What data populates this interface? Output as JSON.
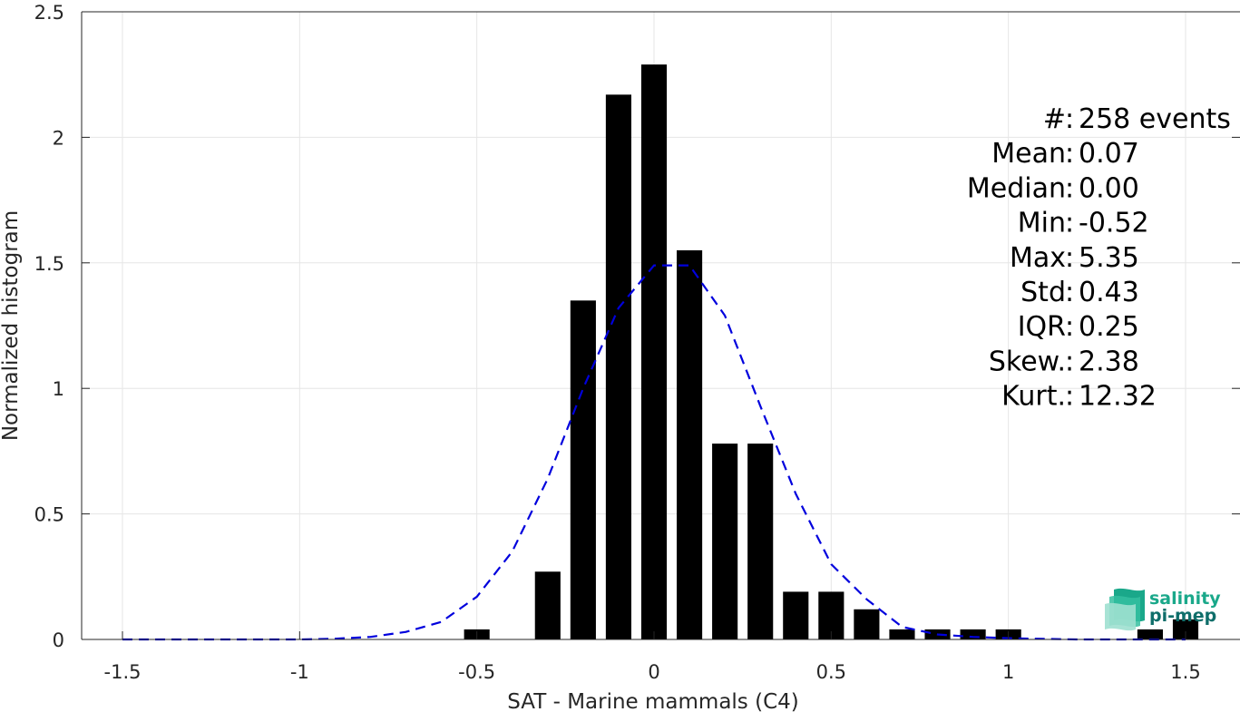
{
  "chart_data": {
    "type": "bar",
    "xlabel": "SAT - Marine mammals (C4)",
    "ylabel": "Normalized histogram",
    "xlim": [
      -1.5,
      1.5
    ],
    "ylim": [
      0,
      2.5
    ],
    "xticks": [
      -1.5,
      -1,
      -0.5,
      0,
      0.5,
      1,
      1.5
    ],
    "xtick_labels": [
      "-1.5",
      "-1",
      "-0.5",
      "0",
      "0.5",
      "1",
      "1.5"
    ],
    "yticks": [
      0,
      0.5,
      1,
      1.5,
      2,
      2.5
    ],
    "ytick_labels": [
      "0",
      "0.5",
      "1",
      "1.5",
      "2",
      "2.5"
    ],
    "grid": true,
    "bar_color": "#000000",
    "bars": [
      {
        "x": -0.5,
        "y": 0.04
      },
      {
        "x": -0.3,
        "y": 0.27
      },
      {
        "x": -0.2,
        "y": 1.35
      },
      {
        "x": -0.1,
        "y": 2.17
      },
      {
        "x": 0.0,
        "y": 2.29
      },
      {
        "x": 0.1,
        "y": 1.55
      },
      {
        "x": 0.2,
        "y": 0.78
      },
      {
        "x": 0.3,
        "y": 0.78
      },
      {
        "x": 0.4,
        "y": 0.19
      },
      {
        "x": 0.5,
        "y": 0.19
      },
      {
        "x": 0.6,
        "y": 0.12
      },
      {
        "x": 0.7,
        "y": 0.04
      },
      {
        "x": 0.8,
        "y": 0.04
      },
      {
        "x": 0.9,
        "y": 0.04
      },
      {
        "x": 1.0,
        "y": 0.04
      },
      {
        "x": 1.4,
        "y": 0.04
      },
      {
        "x": 1.5,
        "y": 0.08
      }
    ],
    "curve": {
      "color": "#0000dd",
      "style": "dashed",
      "x": [
        -1.5,
        -1.4,
        -1.3,
        -1.2,
        -1.1,
        -1.0,
        -0.9,
        -0.8,
        -0.7,
        -0.6,
        -0.5,
        -0.4,
        -0.3,
        -0.2,
        -0.1,
        0.0,
        0.1,
        0.2,
        0.3,
        0.4,
        0.5,
        0.6,
        0.7,
        0.8,
        0.9,
        1.0,
        1.1,
        1.2,
        1.3,
        1.4,
        1.5
      ],
      "y": [
        0.0,
        0.0,
        0.0,
        0.0,
        0.0,
        0.0,
        0.003,
        0.01,
        0.03,
        0.07,
        0.17,
        0.35,
        0.64,
        1.0,
        1.32,
        1.49,
        1.49,
        1.29,
        0.93,
        0.58,
        0.3,
        0.16,
        0.05,
        0.02,
        0.01,
        0.005,
        0.002,
        0.0,
        0.0,
        0.0,
        0.0
      ]
    },
    "stats": [
      {
        "label": "#",
        "sep": " : ",
        "value": "258 events"
      },
      {
        "label": "Mean",
        "sep": " : ",
        "value": "0.07"
      },
      {
        "label": "Median",
        "sep": " : ",
        "value": "0.00"
      },
      {
        "label": "Min",
        "sep": " : ",
        "value": "-0.52"
      },
      {
        "label": "Max",
        "sep": " : ",
        "value": "5.35"
      },
      {
        "label": "Std",
        "sep": " : ",
        "value": "0.43"
      },
      {
        "label": "IQR",
        "sep": " : ",
        "value": "0.25"
      },
      {
        "label": "Skew.",
        "sep": " : ",
        "value": "2.38"
      },
      {
        "label": "Kurt.",
        "sep": " : ",
        "value": "12.32"
      }
    ]
  },
  "logo": {
    "line1": "salinity",
    "line2": "pi-mep",
    "color1": "#1aa88a",
    "color2": "#0f6e6a"
  }
}
